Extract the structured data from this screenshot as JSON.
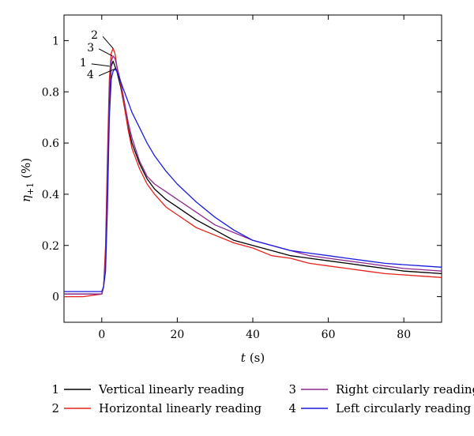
{
  "chart_data": {
    "type": "line",
    "xlabel_var": "t",
    "xlabel_unit": "(s)",
    "ylabel_var": "η",
    "ylabel_sub": "+1",
    "ylabel_unit": "(%)",
    "xlim": [
      -10,
      90
    ],
    "ylim": [
      -0.1,
      1.1
    ],
    "x_ticks": [
      0,
      20,
      40,
      60,
      80
    ],
    "y_ticks": [
      0,
      0.2,
      0.4,
      0.6,
      0.8,
      1
    ],
    "grid": false,
    "legend_position": "bottom",
    "series": [
      {
        "id": "1",
        "name": "Vertical linearly reading",
        "color": "#000000",
        "x": [
          -10,
          -5,
          0,
          0.5,
          1,
          1.5,
          2,
          2.5,
          3,
          3.5,
          4,
          5,
          6,
          7,
          8,
          10,
          12,
          14,
          17,
          20,
          25,
          30,
          35,
          40,
          45,
          50,
          55,
          60,
          65,
          70,
          75,
          80,
          85,
          90
        ],
        "y": [
          0.01,
          0.01,
          0.01,
          0.04,
          0.15,
          0.45,
          0.75,
          0.9,
          0.92,
          0.9,
          0.88,
          0.82,
          0.74,
          0.66,
          0.6,
          0.52,
          0.46,
          0.42,
          0.38,
          0.35,
          0.3,
          0.26,
          0.22,
          0.2,
          0.18,
          0.16,
          0.15,
          0.14,
          0.13,
          0.12,
          0.11,
          0.1,
          0.095,
          0.09
        ]
      },
      {
        "id": "2",
        "name": "Horizontal linearly reading",
        "color": "#e4211c",
        "x": [
          -10,
          -5,
          0,
          0.5,
          1,
          1.5,
          2,
          2.5,
          3,
          3.5,
          4,
          5,
          6,
          7,
          8,
          10,
          12,
          14,
          17,
          20,
          25,
          30,
          35,
          40,
          45,
          50,
          55,
          60,
          65,
          70,
          75,
          80,
          85,
          90
        ],
        "y": [
          0.0,
          0.0,
          0.01,
          0.04,
          0.2,
          0.55,
          0.85,
          0.95,
          0.97,
          0.95,
          0.9,
          0.83,
          0.74,
          0.65,
          0.58,
          0.5,
          0.44,
          0.4,
          0.35,
          0.32,
          0.27,
          0.24,
          0.21,
          0.19,
          0.16,
          0.15,
          0.13,
          0.12,
          0.11,
          0.1,
          0.09,
          0.085,
          0.08,
          0.075
        ]
      },
      {
        "id": "3",
        "name": "Right circularly reading",
        "color": "#8e2a8e",
        "x": [
          -10,
          -5,
          0,
          0.5,
          1,
          1.5,
          2,
          2.5,
          3,
          3.5,
          4,
          5,
          6,
          7,
          8,
          10,
          12,
          14,
          17,
          20,
          25,
          30,
          35,
          40,
          45,
          50,
          55,
          60,
          65,
          70,
          75,
          80,
          85,
          90
        ],
        "y": [
          0.01,
          0.01,
          0.01,
          0.04,
          0.15,
          0.5,
          0.8,
          0.92,
          0.94,
          0.93,
          0.9,
          0.84,
          0.76,
          0.68,
          0.62,
          0.53,
          0.47,
          0.44,
          0.41,
          0.38,
          0.33,
          0.28,
          0.25,
          0.22,
          0.2,
          0.18,
          0.16,
          0.15,
          0.14,
          0.13,
          0.12,
          0.11,
          0.105,
          0.1
        ]
      },
      {
        "id": "4",
        "name": "Left circularly reading",
        "color": "#1a1adf",
        "x": [
          -10,
          -5,
          0,
          0.5,
          1,
          1.5,
          2,
          2.5,
          3,
          3.5,
          4,
          5,
          6,
          7,
          8,
          10,
          12,
          14,
          17,
          20,
          25,
          30,
          35,
          40,
          45,
          50,
          55,
          60,
          65,
          70,
          75,
          80,
          85,
          90
        ],
        "y": [
          0.02,
          0.02,
          0.02,
          0.04,
          0.1,
          0.35,
          0.7,
          0.85,
          0.88,
          0.89,
          0.88,
          0.84,
          0.8,
          0.76,
          0.72,
          0.66,
          0.6,
          0.55,
          0.49,
          0.44,
          0.37,
          0.31,
          0.26,
          0.22,
          0.2,
          0.18,
          0.17,
          0.16,
          0.15,
          0.14,
          0.13,
          0.125,
          0.12,
          0.115
        ]
      }
    ],
    "annotations": [
      {
        "label": "2",
        "target_x": 3.2,
        "target_y": 0.97
      },
      {
        "label": "3",
        "target_x": 3.0,
        "target_y": 0.94
      },
      {
        "label": "1",
        "target_x": 2.3,
        "target_y": 0.9
      },
      {
        "label": "4",
        "target_x": 3.8,
        "target_y": 0.89
      }
    ]
  }
}
